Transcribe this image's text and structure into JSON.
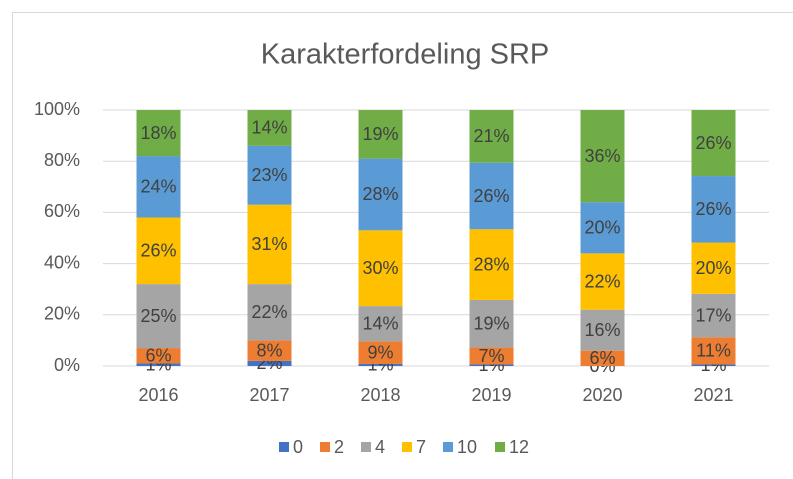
{
  "chart_data": {
    "type": "stacked_bar",
    "title": "Karakterfordeling SRP",
    "categories": [
      "2016",
      "2017",
      "2018",
      "2019",
      "2020",
      "2021"
    ],
    "series": [
      {
        "name": "0",
        "color": "#4472c4",
        "values": [
          1,
          2,
          0.8,
          0.6,
          0,
          0.6
        ],
        "value_labels": [
          "1%",
          "2%",
          "1%",
          "1%",
          "0%",
          "1%"
        ]
      },
      {
        "name": "2",
        "color": "#ed7d31",
        "values": [
          6,
          8,
          8.8,
          6.6,
          6,
          10.6
        ],
        "value_labels": [
          "6%",
          "8%",
          "9%",
          "7%",
          "6%",
          "11%"
        ]
      },
      {
        "name": "4",
        "color": "#a5a5a5",
        "values": [
          25,
          22,
          13.8,
          18.6,
          16,
          17
        ],
        "value_labels": [
          "25%",
          "22%",
          "14%",
          "19%",
          "16%",
          "17%"
        ]
      },
      {
        "name": "7",
        "color": "#ffc000",
        "values": [
          26,
          31,
          29.6,
          27.6,
          22,
          20
        ],
        "value_labels": [
          "26%",
          "31%",
          "30%",
          "28%",
          "22%",
          "20%"
        ]
      },
      {
        "name": "10",
        "color": "#5b9bd5",
        "values": [
          24,
          23,
          28,
          26,
          20,
          26
        ],
        "value_labels": [
          "24%",
          "23%",
          "28%",
          "26%",
          "20%",
          "26%"
        ]
      },
      {
        "name": "12",
        "color": "#70ad47",
        "values": [
          18,
          14,
          19,
          20.6,
          36,
          25.8
        ],
        "value_labels": [
          "18%",
          "14%",
          "19%",
          "21%",
          "36%",
          "26%"
        ]
      }
    ],
    "ylim": [
      0,
      100
    ],
    "yticks": [
      {
        "value": 0,
        "label": "0%"
      },
      {
        "value": 20,
        "label": "20%"
      },
      {
        "value": 40,
        "label": "40%"
      },
      {
        "value": 60,
        "label": "60%"
      },
      {
        "value": 80,
        "label": "80%"
      },
      {
        "value": 100,
        "label": "100%"
      }
    ],
    "grid": true,
    "legend": "bottom"
  }
}
